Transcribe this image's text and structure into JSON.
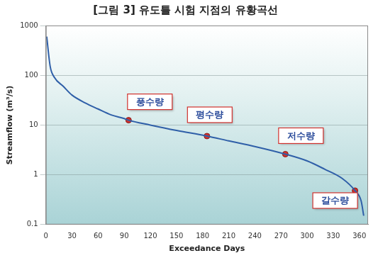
{
  "chart_data": {
    "type": "line",
    "title": "[그림 3] 유도틀 시험 지점의 유황곡선",
    "x_label": "Exceedance Days",
    "y_label": "Streamflow (m³/s)",
    "x": [
      1,
      5,
      10,
      20,
      30,
      45,
      60,
      75,
      90,
      95,
      120,
      150,
      185,
      210,
      240,
      275,
      300,
      320,
      340,
      355,
      362,
      365
    ],
    "values": [
      600,
      150,
      90,
      60,
      40,
      28,
      21,
      16,
      13.5,
      12.5,
      10,
      7.8,
      6,
      4.8,
      3.7,
      2.6,
      1.9,
      1.3,
      0.85,
      0.48,
      0.3,
      0.15
    ],
    "color": "#2f5fa8",
    "xlim": [
      0,
      370
    ],
    "xticks": [
      0,
      30,
      60,
      90,
      120,
      150,
      180,
      210,
      240,
      270,
      300,
      330,
      360
    ],
    "ylim": [
      0.1,
      1000
    ],
    "yticks": [
      0.1,
      1,
      10,
      100,
      1000
    ],
    "log": "y",
    "grid": true,
    "annotations": [
      {
        "text": "풍수량",
        "x": 95,
        "y": 12.5
      },
      {
        "text": "평수량",
        "x": 185,
        "y": 6
      },
      {
        "text": "저수량",
        "x": 275,
        "y": 2.6
      },
      {
        "text": "갈수량",
        "x": 355,
        "y": 0.48
      }
    ]
  }
}
